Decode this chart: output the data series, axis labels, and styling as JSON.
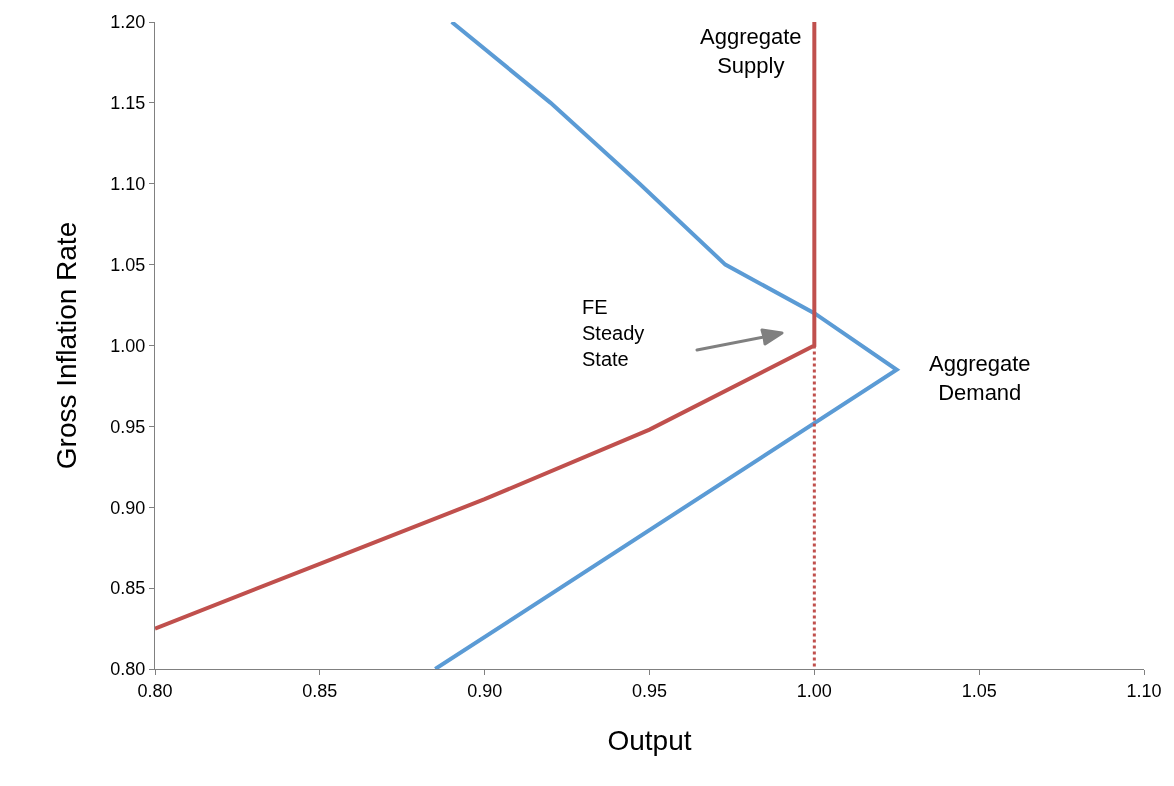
{
  "chart_data": {
    "type": "line",
    "xlabel": "Output",
    "ylabel": "Gross Inflation Rate",
    "xlim": [
      0.8,
      1.1
    ],
    "ylim": [
      0.8,
      1.2
    ],
    "xticks": [
      {
        "value": 0.8,
        "label": "0.80"
      },
      {
        "value": 0.85,
        "label": "0.85"
      },
      {
        "value": 0.9,
        "label": "0.90"
      },
      {
        "value": 0.95,
        "label": "0.95"
      },
      {
        "value": 1.0,
        "label": "1.00"
      },
      {
        "value": 1.05,
        "label": "1.05"
      },
      {
        "value": 1.1,
        "label": "1.10"
      }
    ],
    "yticks": [
      {
        "value": 0.8,
        "label": "0.80"
      },
      {
        "value": 0.85,
        "label": "0.85"
      },
      {
        "value": 0.9,
        "label": "0.90"
      },
      {
        "value": 0.95,
        "label": "0.95"
      },
      {
        "value": 1.0,
        "label": "1.00"
      },
      {
        "value": 1.05,
        "label": "1.05"
      },
      {
        "value": 1.1,
        "label": "1.10"
      },
      {
        "value": 1.15,
        "label": "1.15"
      },
      {
        "value": 1.2,
        "label": "1.20"
      }
    ],
    "grid": false,
    "legend": false,
    "marker": "none",
    "series": [
      {
        "name": "Aggregate Demand",
        "color": "#5b9bd5",
        "line_style": "solid",
        "x": [
          0.89,
          0.92,
          0.947,
          0.973,
          1.0,
          1.025,
          0.885
        ],
        "values": [
          1.2,
          1.15,
          1.1,
          1.05,
          1.02,
          0.985,
          0.8
        ]
      },
      {
        "name": "Aggregate Supply",
        "color": "#c0504d",
        "line_style": "solid",
        "x": [
          0.8,
          0.85,
          0.9,
          0.95,
          1.0,
          1.0
        ],
        "values": [
          0.825,
          0.865,
          0.905,
          0.948,
          1.0,
          1.2
        ]
      },
      {
        "color": "#c0504d",
        "line_style": "dotted",
        "x": [
          1.0,
          1.0
        ],
        "values": [
          1.0,
          0.8
        ]
      }
    ],
    "annotations": [
      "FE\nSteady\nState"
    ]
  }
}
